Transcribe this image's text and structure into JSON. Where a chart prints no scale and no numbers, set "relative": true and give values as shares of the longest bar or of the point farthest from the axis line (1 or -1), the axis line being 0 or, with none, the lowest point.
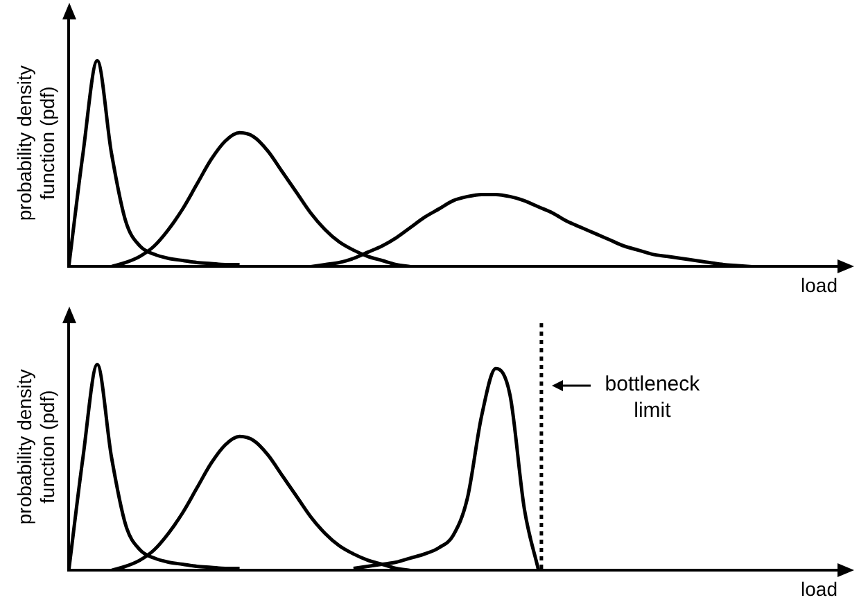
{
  "chart_data": [
    {
      "type": "line",
      "relative": true,
      "tick_labels": false,
      "xlabel": "load",
      "ylabel": "probability density function (pdf)",
      "categories": [
        null,
        null,
        null,
        null,
        null,
        null,
        null,
        null,
        null,
        null,
        null,
        null,
        null,
        null,
        null,
        null,
        null,
        null,
        null,
        null,
        null,
        null,
        null,
        null,
        null,
        null,
        null,
        null,
        null,
        null,
        null,
        null,
        null,
        null,
        null,
        null,
        null,
        null,
        null,
        null,
        null,
        null,
        null,
        null,
        null,
        null,
        null,
        null,
        null,
        null,
        null,
        null,
        null,
        null,
        null
      ],
      "series": [
        {
          "color": "#000000",
          "values": [
            0,
            0.55,
            1,
            0.55,
            0.22,
            0.1,
            0.06,
            0.04,
            0.03,
            0.02,
            0.015,
            0.01,
            0.01,
            null,
            null,
            null,
            null,
            null,
            null,
            null,
            null,
            null,
            null,
            null,
            null,
            null,
            null,
            null,
            null,
            null,
            null,
            null,
            null,
            null,
            null,
            null,
            null,
            null,
            null,
            null,
            null,
            null,
            null,
            null,
            null,
            null,
            null,
            null,
            null,
            null,
            null,
            null,
            null,
            null,
            null
          ]
        },
        {
          "color": "#000000",
          "values": [
            null,
            null,
            null,
            0,
            0.02,
            0.05,
            0.1,
            0.18,
            0.28,
            0.4,
            0.52,
            0.61,
            0.65,
            0.63,
            0.56,
            0.46,
            0.36,
            0.26,
            0.18,
            0.12,
            0.08,
            0.05,
            0.03,
            0.01,
            0,
            null,
            null,
            null,
            null,
            null,
            null,
            null,
            null,
            null,
            null,
            null,
            null,
            null,
            null,
            null,
            null,
            null,
            null,
            null,
            null,
            null,
            null,
            null,
            null,
            null,
            null,
            null,
            null,
            null,
            null
          ]
        },
        {
          "color": "#000000",
          "values": [
            null,
            null,
            null,
            null,
            null,
            null,
            null,
            null,
            null,
            null,
            null,
            null,
            null,
            null,
            null,
            null,
            null,
            0,
            0.01,
            0.02,
            0.04,
            0.07,
            0.1,
            0.14,
            0.19,
            0.24,
            0.28,
            0.32,
            0.34,
            0.35,
            0.35,
            0.34,
            0.32,
            0.29,
            0.26,
            0.22,
            0.19,
            0.16,
            0.13,
            0.1,
            0.08,
            0.06,
            0.05,
            0.04,
            0.03,
            0.02,
            0.01,
            0.005,
            0,
            null,
            null,
            null,
            null,
            null,
            null
          ]
        }
      ]
    },
    {
      "type": "line",
      "relative": true,
      "tick_labels": false,
      "xlabel": "load",
      "ylabel": "probability density function (pdf)",
      "categories": [
        null,
        null,
        null,
        null,
        null,
        null,
        null,
        null,
        null,
        null,
        null,
        null,
        null,
        null,
        null,
        null,
        null,
        null,
        null,
        null,
        null,
        null,
        null,
        null,
        null,
        null,
        null,
        null,
        null,
        null,
        null,
        null,
        null,
        null,
        null,
        null,
        null,
        null,
        null,
        null,
        null,
        null,
        null,
        null,
        null,
        null,
        null,
        null,
        null,
        null,
        null,
        null,
        null,
        null,
        null
      ],
      "series": [
        {
          "color": "#000000",
          "values": [
            0,
            0.55,
            1,
            0.55,
            0.22,
            0.1,
            0.06,
            0.04,
            0.03,
            0.02,
            0.015,
            0.01,
            0.01,
            null,
            null,
            null,
            null,
            null,
            null,
            null,
            null,
            null,
            null,
            null,
            null,
            null,
            null,
            null,
            null,
            null,
            null,
            null,
            null,
            null,
            null,
            null,
            null,
            null,
            null,
            null,
            null,
            null,
            null,
            null,
            null,
            null,
            null,
            null,
            null,
            null,
            null,
            null,
            null,
            null,
            null
          ]
        },
        {
          "color": "#000000",
          "values": [
            null,
            null,
            null,
            0,
            0.02,
            0.05,
            0.1,
            0.18,
            0.28,
            0.4,
            0.52,
            0.61,
            0.65,
            0.63,
            0.56,
            0.46,
            0.36,
            0.26,
            0.18,
            0.12,
            0.08,
            0.05,
            0.03,
            0.01,
            0,
            null,
            null,
            null,
            null,
            null,
            null,
            null,
            null,
            null,
            null,
            null,
            null,
            null,
            null,
            null,
            null,
            null,
            null,
            null,
            null,
            null,
            null,
            null,
            null,
            null,
            null,
            null,
            null,
            null,
            null
          ]
        },
        {
          "color": "#000000",
          "values": [
            null,
            null,
            null,
            null,
            null,
            null,
            null,
            null,
            null,
            null,
            null,
            null,
            null,
            null,
            null,
            null,
            null,
            null,
            null,
            null,
            0.01,
            0.02,
            0.03,
            0.04,
            0.06,
            0.08,
            0.11,
            0.17,
            0.35,
            0.75,
            0.98,
            0.85,
            0.3,
            0,
            null,
            null,
            null,
            null,
            null,
            null,
            null,
            null,
            null,
            null,
            null,
            null,
            null,
            null,
            null,
            null,
            null,
            null,
            null,
            null,
            null
          ]
        }
      ],
      "annotations": [
        "bottleneck limit"
      ]
    }
  ]
}
